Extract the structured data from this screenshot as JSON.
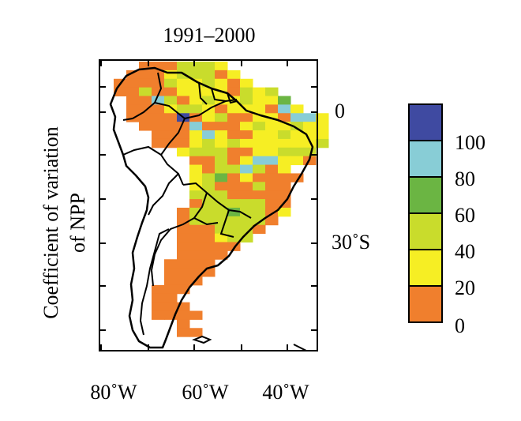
{
  "title": "1991–2000",
  "ylabel_line1": "Coefficient of variation",
  "ylabel_line2": "of NPP",
  "latitude_labels": [
    "0",
    "30˚S"
  ],
  "longitude_labels": [
    "80˚W",
    "60˚W",
    "40˚W"
  ],
  "colorbar": {
    "ticks": [
      "100",
      "80",
      "60",
      "40",
      "20",
      "0"
    ],
    "colors": [
      "#3f4aa1",
      "#88cdd6",
      "#6bb543",
      "#c9dc2c",
      "#f6ee24",
      "#f07f2d"
    ]
  }
}
